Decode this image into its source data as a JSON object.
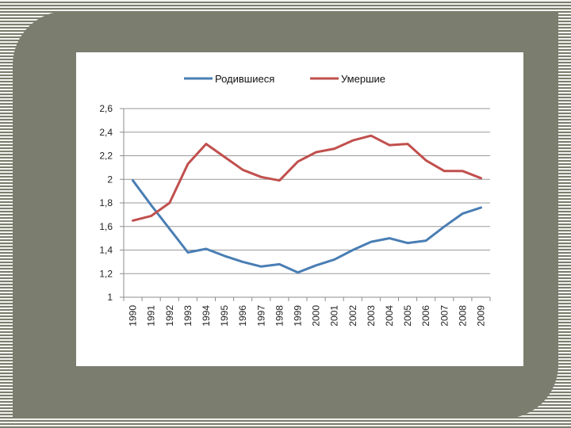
{
  "chart_data": {
    "type": "line",
    "x": [
      "1990",
      "1991",
      "1992",
      "1993",
      "1994",
      "1995",
      "1996",
      "1997",
      "1998",
      "1999",
      "2000",
      "2001",
      "2002",
      "2003",
      "2004",
      "2005",
      "2006",
      "2007",
      "2008",
      "2009"
    ],
    "series": [
      {
        "name": "Родившиеся",
        "color": "#4a7eb4",
        "values": [
          1.99,
          1.78,
          1.58,
          1.38,
          1.41,
          1.35,
          1.3,
          1.26,
          1.28,
          1.21,
          1.27,
          1.32,
          1.4,
          1.47,
          1.5,
          1.46,
          1.48,
          1.6,
          1.71,
          1.76
        ]
      },
      {
        "name": "Умершие",
        "color": "#c0504d",
        "values": [
          1.65,
          1.69,
          1.8,
          2.13,
          2.3,
          2.19,
          2.08,
          2.02,
          1.99,
          2.15,
          2.23,
          2.26,
          2.33,
          2.37,
          2.29,
          2.3,
          2.16,
          2.07,
          2.07,
          2.01
        ]
      }
    ],
    "ylim": [
      1,
      2.6
    ],
    "yticks": [
      "1",
      "1,2",
      "1,4",
      "1,6",
      "1,8",
      "2",
      "2,2",
      "2,4",
      "2,6"
    ],
    "grid": true,
    "legend_position": "top"
  }
}
